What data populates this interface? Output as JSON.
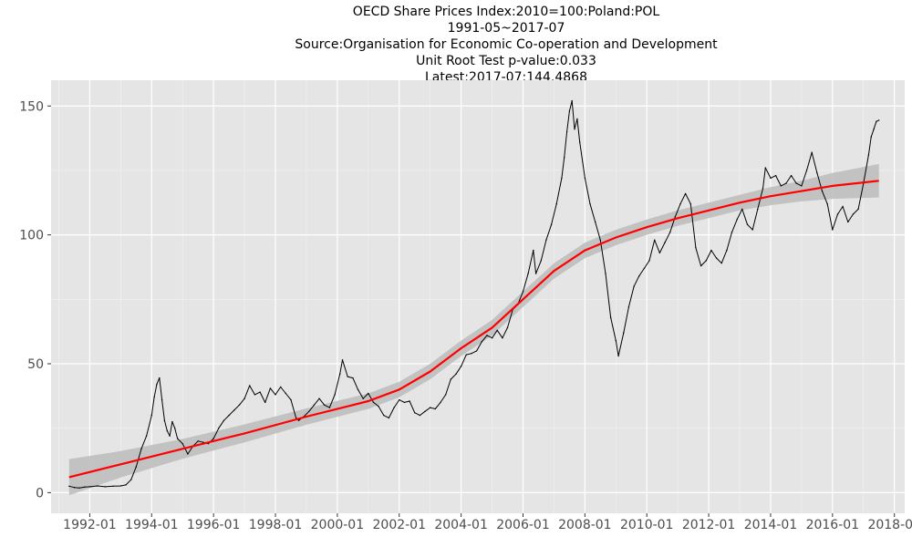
{
  "chart_data": {
    "type": "line",
    "title_lines": [
      "OECD Share Prices Index:2010=100:Poland:POL",
      "1991-05~2017-07",
      "Source:Organisation for Economic Co-operation and Development",
      "Unit Root Test p-value:0.033",
      "Latest:2017-07:144.4868"
    ],
    "xlabel": "",
    "ylabel": "",
    "x_ticks": [
      "1992-01",
      "1994-01",
      "1996-01",
      "1998-01",
      "2000-01",
      "2002-01",
      "2004-01",
      "2006-01",
      "2008-01",
      "2010-01",
      "2012-01",
      "2014-01",
      "2016-01",
      "2018-01"
    ],
    "y_ticks": [
      0,
      50,
      100,
      150
    ],
    "xlim": [
      "1990-10",
      "2018-05"
    ],
    "ylim": [
      -8,
      160
    ],
    "grid": true,
    "panel_background": "#e5e5e5",
    "series": [
      {
        "style": "black thin line",
        "color": "#000000",
        "points": [
          [
            "1991-05",
            2.5
          ],
          [
            "1991-07",
            2.0
          ],
          [
            "1991-09",
            1.8
          ],
          [
            "1991-11",
            2.2
          ],
          [
            "1992-01",
            2.3
          ],
          [
            "1992-04",
            2.6
          ],
          [
            "1992-07",
            2.3
          ],
          [
            "1992-10",
            2.5
          ],
          [
            "1993-01",
            2.6
          ],
          [
            "1993-03",
            3.0
          ],
          [
            "1993-05",
            5.0
          ],
          [
            "1993-07",
            10.0
          ],
          [
            "1993-09",
            17.0
          ],
          [
            "1993-11",
            22.0
          ],
          [
            "1994-01",
            30.0
          ],
          [
            "1994-02",
            37.0
          ],
          [
            "1994-03",
            42.0
          ],
          [
            "1994-04",
            44.5
          ],
          [
            "1994-05",
            36.0
          ],
          [
            "1994-06",
            28.0
          ],
          [
            "1994-07",
            24.0
          ],
          [
            "1994-08",
            22.0
          ],
          [
            "1994-09",
            27.5
          ],
          [
            "1994-10",
            25.0
          ],
          [
            "1994-11",
            21.0
          ],
          [
            "1995-01",
            19.0
          ],
          [
            "1995-03",
            15.0
          ],
          [
            "1995-05",
            18.0
          ],
          [
            "1995-07",
            20.0
          ],
          [
            "1995-09",
            19.5
          ],
          [
            "1995-11",
            19.0
          ],
          [
            "1996-01",
            21.0
          ],
          [
            "1996-03",
            25.0
          ],
          [
            "1996-05",
            28.0
          ],
          [
            "1996-07",
            30.0
          ],
          [
            "1996-09",
            32.0
          ],
          [
            "1996-11",
            34.0
          ],
          [
            "1997-01",
            36.5
          ],
          [
            "1997-03",
            41.5
          ],
          [
            "1997-05",
            38.0
          ],
          [
            "1997-07",
            39.0
          ],
          [
            "1997-09",
            35.0
          ],
          [
            "1997-11",
            40.5
          ],
          [
            "1998-01",
            38.0
          ],
          [
            "1998-03",
            41.0
          ],
          [
            "1998-05",
            38.5
          ],
          [
            "1998-07",
            36.0
          ],
          [
            "1998-09",
            29.0
          ],
          [
            "1998-10",
            28.0
          ],
          [
            "1998-12",
            29.5
          ],
          [
            "1999-02",
            31.5
          ],
          [
            "1999-04",
            34.0
          ],
          [
            "1999-06",
            36.5
          ],
          [
            "1999-08",
            34.0
          ],
          [
            "1999-10",
            33.0
          ],
          [
            "1999-12",
            38.0
          ],
          [
            "2000-02",
            46.0
          ],
          [
            "2000-03",
            51.5
          ],
          [
            "2000-05",
            45.0
          ],
          [
            "2000-07",
            44.5
          ],
          [
            "2000-09",
            40.0
          ],
          [
            "2000-11",
            36.5
          ],
          [
            "2001-01",
            38.5
          ],
          [
            "2001-03",
            35.0
          ],
          [
            "2001-05",
            33.5
          ],
          [
            "2001-07",
            30.0
          ],
          [
            "2001-09",
            29.0
          ],
          [
            "2001-11",
            33.0
          ],
          [
            "2002-01",
            36.0
          ],
          [
            "2002-03",
            35.0
          ],
          [
            "2002-05",
            35.5
          ],
          [
            "2002-07",
            31.0
          ],
          [
            "2002-09",
            30.0
          ],
          [
            "2002-11",
            31.5
          ],
          [
            "2003-01",
            33.0
          ],
          [
            "2003-03",
            32.5
          ],
          [
            "2003-05",
            35.0
          ],
          [
            "2003-07",
            38.0
          ],
          [
            "2003-09",
            44.0
          ],
          [
            "2003-11",
            46.0
          ],
          [
            "2004-01",
            49.0
          ],
          [
            "2004-03",
            53.5
          ],
          [
            "2004-05",
            54.0
          ],
          [
            "2004-07",
            55.0
          ],
          [
            "2004-09",
            58.5
          ],
          [
            "2004-11",
            61.0
          ],
          [
            "2005-01",
            60.0
          ],
          [
            "2005-03",
            63.0
          ],
          [
            "2005-05",
            60.0
          ],
          [
            "2005-07",
            64.0
          ],
          [
            "2005-09",
            71.0
          ],
          [
            "2005-11",
            73.0
          ],
          [
            "2006-01",
            78.0
          ],
          [
            "2006-03",
            85.0
          ],
          [
            "2006-05",
            94.0
          ],
          [
            "2006-06",
            85.0
          ],
          [
            "2006-08",
            90.0
          ],
          [
            "2006-10",
            98.0
          ],
          [
            "2006-12",
            104.0
          ],
          [
            "2007-02",
            112.0
          ],
          [
            "2007-04",
            122.0
          ],
          [
            "2007-05",
            130.0
          ],
          [
            "2007-06",
            140.0
          ],
          [
            "2007-07",
            148.0
          ],
          [
            "2007-08",
            152.0
          ],
          [
            "2007-09",
            141.0
          ],
          [
            "2007-10",
            145.0
          ],
          [
            "2007-11",
            136.0
          ],
          [
            "2008-01",
            122.0
          ],
          [
            "2008-03",
            112.0
          ],
          [
            "2008-05",
            105.0
          ],
          [
            "2008-07",
            98.0
          ],
          [
            "2008-09",
            85.0
          ],
          [
            "2008-11",
            68.0
          ],
          [
            "2009-01",
            59.0
          ],
          [
            "2009-02",
            53.0
          ],
          [
            "2009-04",
            62.0
          ],
          [
            "2009-06",
            72.0
          ],
          [
            "2009-08",
            80.0
          ],
          [
            "2009-10",
            84.0
          ],
          [
            "2009-12",
            87.0
          ],
          [
            "2010-02",
            90.0
          ],
          [
            "2010-04",
            98.0
          ],
          [
            "2010-06",
            93.0
          ],
          [
            "2010-08",
            97.0
          ],
          [
            "2010-10",
            101.0
          ],
          [
            "2010-12",
            107.0
          ],
          [
            "2011-02",
            112.0
          ],
          [
            "2011-04",
            116.0
          ],
          [
            "2011-06",
            112.0
          ],
          [
            "2011-08",
            95.0
          ],
          [
            "2011-10",
            88.0
          ],
          [
            "2011-12",
            90.0
          ],
          [
            "2012-02",
            94.0
          ],
          [
            "2012-04",
            91.0
          ],
          [
            "2012-06",
            89.0
          ],
          [
            "2012-08",
            94.0
          ],
          [
            "2012-10",
            101.0
          ],
          [
            "2012-12",
            106.0
          ],
          [
            "2013-02",
            110.0
          ],
          [
            "2013-04",
            104.0
          ],
          [
            "2013-06",
            102.0
          ],
          [
            "2013-08",
            110.0
          ],
          [
            "2013-10",
            118.0
          ],
          [
            "2013-11",
            126.0
          ],
          [
            "2014-01",
            122.0
          ],
          [
            "2014-03",
            123.0
          ],
          [
            "2014-05",
            119.0
          ],
          [
            "2014-07",
            120.0
          ],
          [
            "2014-09",
            123.0
          ],
          [
            "2014-11",
            120.0
          ],
          [
            "2015-01",
            119.0
          ],
          [
            "2015-03",
            125.0
          ],
          [
            "2015-05",
            132.0
          ],
          [
            "2015-07",
            124.0
          ],
          [
            "2015-09",
            117.0
          ],
          [
            "2015-11",
            112.0
          ],
          [
            "2016-01",
            102.0
          ],
          [
            "2016-03",
            108.0
          ],
          [
            "2016-05",
            111.0
          ],
          [
            "2016-07",
            105.0
          ],
          [
            "2016-09",
            108.0
          ],
          [
            "2016-11",
            110.0
          ],
          [
            "2017-01",
            120.0
          ],
          [
            "2017-03",
            131.0
          ],
          [
            "2017-04",
            138.0
          ],
          [
            "2017-05",
            141.0
          ],
          [
            "2017-06",
            144.0
          ],
          [
            "2017-07",
            144.4868
          ]
        ]
      },
      {
        "style": "red smooth trend line with grey confidence band",
        "color": "#ff0000",
        "band_color": "#bebebe",
        "points": [
          [
            "1991-05",
            6.0
          ],
          [
            "1993-01",
            11.0
          ],
          [
            "1995-01",
            17.0
          ],
          [
            "1997-01",
            23.0
          ],
          [
            "1999-01",
            29.5
          ],
          [
            "2001-01",
            35.5
          ],
          [
            "2002-01",
            40.0
          ],
          [
            "2003-01",
            47.0
          ],
          [
            "2004-01",
            56.0
          ],
          [
            "2005-01",
            64.0
          ],
          [
            "2006-01",
            75.0
          ],
          [
            "2007-01",
            86.0
          ],
          [
            "2008-01",
            94.0
          ],
          [
            "2009-01",
            99.0
          ],
          [
            "2010-01",
            103.0
          ],
          [
            "2011-01",
            106.5
          ],
          [
            "2012-01",
            109.5
          ],
          [
            "2013-01",
            112.5
          ],
          [
            "2014-01",
            115.0
          ],
          [
            "2015-01",
            117.0
          ],
          [
            "2016-01",
            119.0
          ],
          [
            "2017-07",
            121.0
          ]
        ],
        "band_halfwidth": [
          [
            "1991-05",
            7.0
          ],
          [
            "1994-01",
            4.0
          ],
          [
            "2000-01",
            3.0
          ],
          [
            "2007-01",
            3.0
          ],
          [
            "2013-01",
            3.0
          ],
          [
            "2015-01",
            4.0
          ],
          [
            "2017-07",
            6.5
          ]
        ]
      }
    ]
  }
}
